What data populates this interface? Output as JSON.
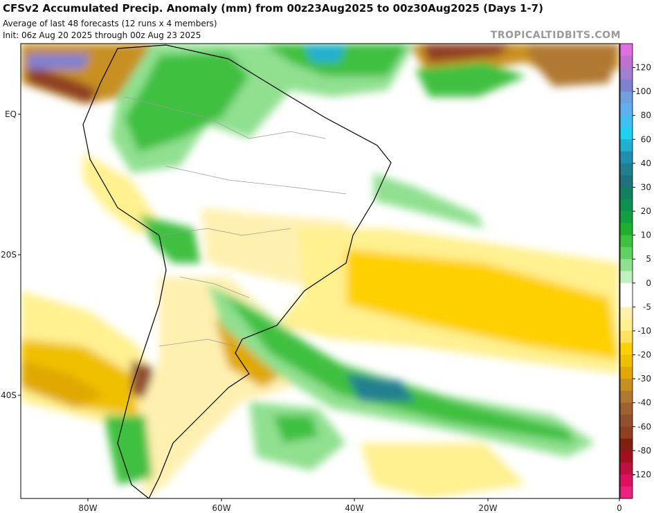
{
  "header": {
    "title": "CFSv2 Accumulated Precip. Anomaly (mm) from 00z23Aug2025 to 00z30Aug2025 (Days 1-7)",
    "subtitle": "Average of last 48 forecasts (12 runs x 4 members)",
    "init": "Init: 06z Aug 20 2025 through 00z Aug 23 2025",
    "watermark": "TROPICALTIDBITS.COM"
  },
  "axes": {
    "lat_labels": [
      "EQ",
      "20S",
      "40S"
    ],
    "lon_labels": [
      "80W",
      "60W",
      "40W",
      "20W",
      "0"
    ]
  },
  "colorbar": {
    "labels": [
      120,
      100,
      80,
      60,
      40,
      30,
      20,
      10,
      5,
      0,
      -5,
      -10,
      -20,
      -30,
      -40,
      -60,
      -80,
      -120
    ],
    "colors": [
      "#e070e0",
      "#c070d0",
      "#a080d0",
      "#8080d0",
      "#70a0e0",
      "#60b0f0",
      "#40c0f0",
      "#20d0f0",
      "#20b0d0",
      "#2090b0",
      "#208090",
      "#207080",
      "#108060",
      "#109050",
      "#10a040",
      "#20b030",
      "#40c040",
      "#60d060",
      "#90e090",
      "#c0f0c0",
      "#ffffff",
      "#ffffff",
      "#fff0b0",
      "#fff090",
      "#ffe060",
      "#ffd000",
      "#f0c000",
      "#e0a800",
      "#c89020",
      "#b07830",
      "#a06030",
      "#905030",
      "#904020",
      "#802010",
      "#a01020",
      "#c01040",
      "#e01060",
      "#f02080"
    ]
  }
}
